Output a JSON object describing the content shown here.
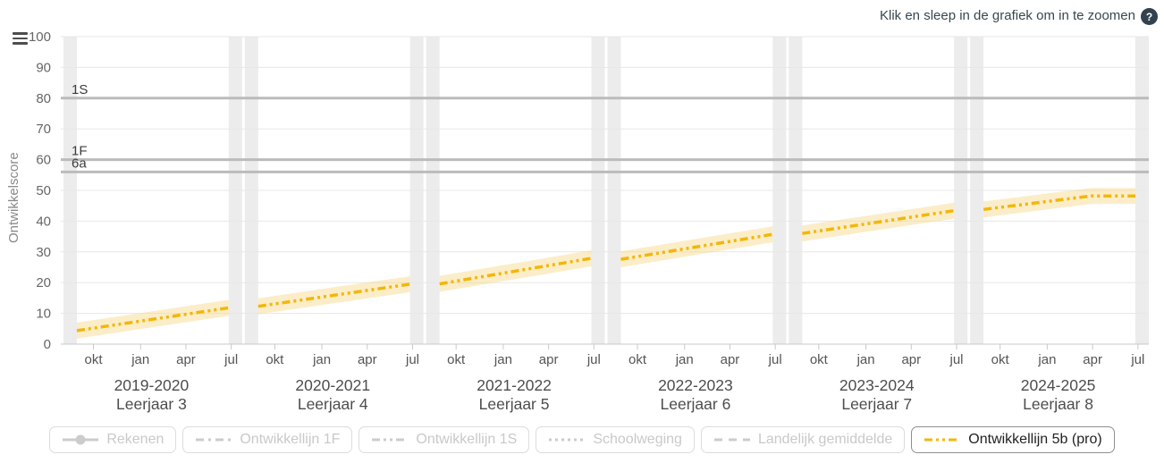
{
  "toolbar": {
    "zoom_hint": "Klik en sleep in de grafiek om in te zoomen",
    "help_label": "?"
  },
  "chart_data": {
    "type": "line",
    "title": "",
    "ylabel": "Ontwikkelscore",
    "ylim": [
      0,
      100
    ],
    "yticks": [
      0,
      10,
      20,
      30,
      40,
      50,
      60,
      70,
      80,
      90,
      100
    ],
    "grid": true,
    "legend_position": "bottom",
    "month_ticks": [
      "okt",
      "jan",
      "apr",
      "jul"
    ],
    "x_groups": [
      {
        "years": "2019-2020",
        "leerjaar": "Leerjaar 3"
      },
      {
        "years": "2020-2021",
        "leerjaar": "Leerjaar 4"
      },
      {
        "years": "2021-2022",
        "leerjaar": "Leerjaar 5"
      },
      {
        "years": "2022-2023",
        "leerjaar": "Leerjaar 6"
      },
      {
        "years": "2023-2024",
        "leerjaar": "Leerjaar 7"
      },
      {
        "years": "2024-2025",
        "leerjaar": "Leerjaar 8"
      }
    ],
    "reference_lines": [
      {
        "label": "1S",
        "value": 80
      },
      {
        "label": "1F",
        "value": 60
      },
      {
        "label": "6a",
        "value": 56
      }
    ],
    "series": [
      {
        "name": "Ontwikkellijn 5b (pro)",
        "color": "#f2b70b",
        "band_color": "#f6d784",
        "band_halfwidth": 2.6,
        "style": "dash-dot-dot",
        "segments": [
          [
            [
              0,
              4.4
            ],
            [
              1,
              11.8
            ]
          ],
          [
            [
              0,
              12.3
            ],
            [
              1,
              19.5
            ]
          ],
          [
            [
              0,
              19.6
            ],
            [
              1,
              27.9
            ]
          ],
          [
            [
              0,
              27.6
            ],
            [
              1,
              35.7
            ]
          ],
          [
            [
              0,
              36.0
            ],
            [
              1,
              43.4
            ]
          ],
          [
            [
              0,
              43.8
            ],
            [
              0.71,
              48.2
            ],
            [
              1,
              48.2
            ]
          ]
        ]
      }
    ]
  },
  "legend": {
    "items": [
      {
        "label": "Rekenen",
        "marker": "line-circle",
        "active": false
      },
      {
        "label": "Ontwikkellijn 1F",
        "marker": "dash-dot",
        "active": false
      },
      {
        "label": "Ontwikkellijn 1S",
        "marker": "dash-dot-dot",
        "active": false
      },
      {
        "label": "Schoolweging",
        "marker": "dots",
        "active": false
      },
      {
        "label": "Landelijk gemiddelde",
        "marker": "dashes",
        "active": false
      },
      {
        "label": "Ontwikkellijn 5b (pro)",
        "marker": "dash-dot-dot",
        "active": true,
        "color": "#f2b70b"
      }
    ]
  },
  "colors": {
    "accent_yellow": "#f2b70b",
    "reference_line": "#bbbbbb",
    "grid_line": "#e7e7e7",
    "plot_band": "#ececec",
    "axis_line": "#c9c9c9",
    "tick_text": "#666666",
    "month_text": "#555555",
    "year_text": "#4d4d4d",
    "help_circle": "#33424f"
  }
}
